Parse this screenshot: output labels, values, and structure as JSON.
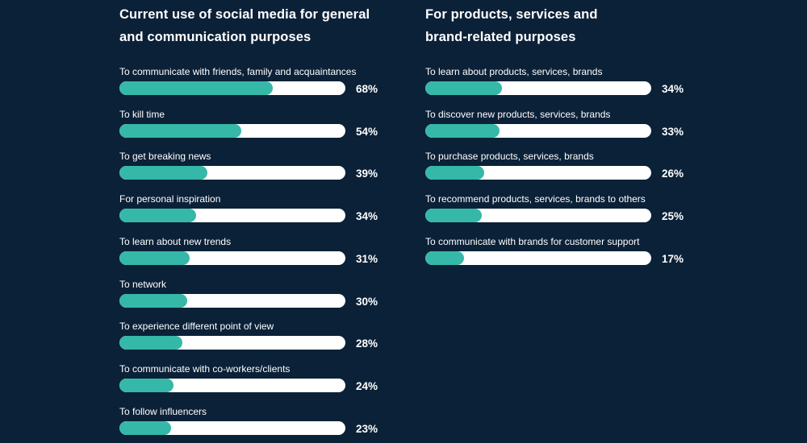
{
  "chart_data": [
    {
      "type": "bar",
      "orientation": "horizontal",
      "title": "Current use of social media for general and communication purposes",
      "title_lines": [
        "Current use of social media for general",
        "and communication purposes"
      ],
      "unit": "%",
      "xlim": [
        0,
        100
      ],
      "categories": [
        "To communicate with friends, family and acquaintances",
        "To kill time",
        "To get breaking news",
        "For personal inspiration",
        "To learn about new trends",
        "To network",
        "To experience different point of view",
        "To communicate with co-workers/clients",
        "To follow influencers"
      ],
      "values": [
        68,
        54,
        39,
        34,
        31,
        30,
        28,
        24,
        23
      ],
      "labels": [
        "68%",
        "54%",
        "39%",
        "34%",
        "31%",
        "30%",
        "28%",
        "24%",
        "23%"
      ]
    },
    {
      "type": "bar",
      "orientation": "horizontal",
      "title": "For products, services and brand-related purposes",
      "title_lines": [
        "For products, services and",
        "brand-related purposes"
      ],
      "unit": "%",
      "xlim": [
        0,
        100
      ],
      "categories": [
        "To learn about products, services, brands",
        "To discover new products, services, brands",
        "To purchase products, services, brands",
        "To recommend products, services, brands to others",
        "To communicate with brands for customer support"
      ],
      "values": [
        34,
        33,
        26,
        25,
        17
      ],
      "labels": [
        "34%",
        "33%",
        "26%",
        "25%",
        "17%"
      ]
    }
  ],
  "colors": {
    "background": "#0b2138",
    "bar_fill": "#35b8a8",
    "bar_track": "#ffffff",
    "text": "#ffffff"
  }
}
